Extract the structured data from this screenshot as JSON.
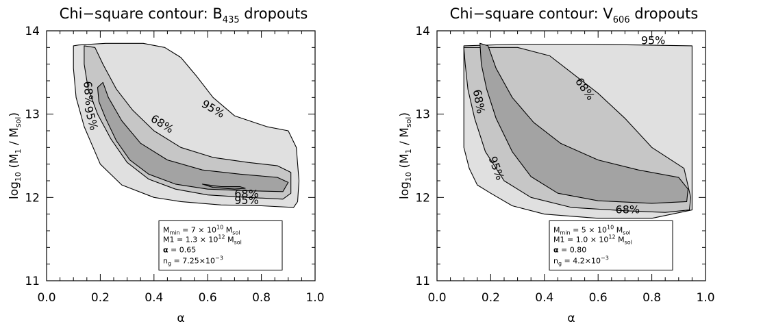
{
  "chart_data": [
    {
      "type": "contour",
      "title": "Chi−square contour: B",
      "title_sub": "435",
      "title_tail": " dropouts",
      "xlabel": "α",
      "ylabel_main": "log",
      "ylabel_sub1": "10",
      "ylabel_mid": " (M",
      "ylabel_sub2": "1",
      "ylabel_mid2": " / M",
      "ylabel_sub3": "sol",
      "ylabel_end": ")",
      "xlim": [
        0.0,
        1.0
      ],
      "ylim": [
        11.0,
        14.0
      ],
      "xticks": [
        "0.0",
        "0.2",
        "0.4",
        "0.6",
        "0.8",
        "1.0"
      ],
      "yticks": [
        "11",
        "12",
        "13",
        "14"
      ],
      "contours": [
        {
          "level": "95%",
          "fill": "#e0e0e0",
          "points": [
            [
              0.1,
              13.82
            ],
            [
              0.12,
              13.83
            ],
            [
              0.22,
              13.85
            ],
            [
              0.36,
              13.85
            ],
            [
              0.44,
              13.8
            ],
            [
              0.5,
              13.68
            ],
            [
              0.56,
              13.45
            ],
            [
              0.62,
              13.2
            ],
            [
              0.7,
              12.98
            ],
            [
              0.82,
              12.85
            ],
            [
              0.9,
              12.8
            ],
            [
              0.93,
              12.6
            ],
            [
              0.94,
              12.2
            ],
            [
              0.935,
              11.95
            ],
            [
              0.92,
              11.88
            ],
            [
              0.8,
              11.9
            ],
            [
              0.65,
              11.91
            ],
            [
              0.5,
              11.95
            ],
            [
              0.4,
              12.0
            ],
            [
              0.28,
              12.15
            ],
            [
              0.2,
              12.4
            ],
            [
              0.14,
              12.85
            ],
            [
              0.11,
              13.2
            ],
            [
              0.1,
              13.55
            ]
          ]
        },
        {
          "level": "68%",
          "fill": "#c6c6c6",
          "points": [
            [
              0.14,
              13.82
            ],
            [
              0.18,
              13.8
            ],
            [
              0.21,
              13.6
            ],
            [
              0.26,
              13.3
            ],
            [
              0.32,
              13.05
            ],
            [
              0.4,
              12.8
            ],
            [
              0.5,
              12.6
            ],
            [
              0.62,
              12.48
            ],
            [
              0.75,
              12.42
            ],
            [
              0.86,
              12.38
            ],
            [
              0.91,
              12.3
            ],
            [
              0.91,
              12.05
            ],
            [
              0.88,
              11.98
            ],
            [
              0.75,
              12.0
            ],
            [
              0.6,
              12.03
            ],
            [
              0.48,
              12.1
            ],
            [
              0.38,
              12.22
            ],
            [
              0.3,
              12.42
            ],
            [
              0.24,
              12.7
            ],
            [
              0.19,
              13.0
            ],
            [
              0.155,
              13.3
            ],
            [
              0.14,
              13.6
            ]
          ]
        },
        {
          "level": "68% core",
          "fill": "#a3a3a3",
          "points": [
            [
              0.19,
              13.32
            ],
            [
              0.21,
              13.38
            ],
            [
              0.23,
              13.2
            ],
            [
              0.28,
              12.92
            ],
            [
              0.35,
              12.65
            ],
            [
              0.45,
              12.45
            ],
            [
              0.58,
              12.33
            ],
            [
              0.72,
              12.28
            ],
            [
              0.86,
              12.24
            ],
            [
              0.9,
              12.18
            ],
            [
              0.88,
              12.07
            ],
            [
              0.75,
              12.08
            ],
            [
              0.6,
              12.1
            ],
            [
              0.48,
              12.16
            ],
            [
              0.38,
              12.28
            ],
            [
              0.31,
              12.45
            ],
            [
              0.26,
              12.68
            ],
            [
              0.22,
              12.95
            ],
            [
              0.195,
              13.15
            ]
          ]
        },
        {
          "level": "inner",
          "fill": "#888888",
          "points": [
            [
              0.58,
              12.16
            ],
            [
              0.65,
              12.13
            ],
            [
              0.72,
              12.13
            ],
            [
              0.74,
              12.11
            ],
            [
              0.7,
              12.1
            ],
            [
              0.62,
              12.12
            ]
          ]
        }
      ],
      "labels": [
        {
          "text": "95%",
          "x": 0.62,
          "y": 13.06,
          "angle": 30
        },
        {
          "text": "68%",
          "x": 0.43,
          "y": 12.88,
          "angle": 32
        },
        {
          "text": "68%",
          "x": 0.155,
          "y": 13.25,
          "angle": 85
        },
        {
          "text": "95%",
          "x": 0.165,
          "y": 12.95,
          "angle": 75
        },
        {
          "text": "68%",
          "x": 0.745,
          "y": 12.04,
          "angle": 0
        },
        {
          "text": "95%",
          "x": 0.745,
          "y": 11.96,
          "angle": 0
        }
      ],
      "info": {
        "mmin_label": "M",
        "mmin_sub": "min",
        "mmin_val": " = 7 × 10",
        "mmin_exp": "10",
        "mmin_unit": " M",
        "mmin_unit_sub": "sol",
        "m1_label": "M1",
        "m1_val": " = 1.3 × 10",
        "m1_exp": "12",
        "m1_unit": " M",
        "m1_unit_sub": "sol",
        "alpha_label": "α",
        "alpha_val": "= 0.65",
        "ng_label": "n",
        "ng_sub": "g",
        "ng_val": "= 7.25×10",
        "ng_exp": "−3"
      }
    },
    {
      "type": "contour",
      "title": "Chi−square contour: V",
      "title_sub": "606",
      "title_tail": " dropouts",
      "xlabel": "α",
      "ylabel_main": "log",
      "ylabel_sub1": "10",
      "ylabel_mid": " (M",
      "ylabel_sub2": "1",
      "ylabel_mid2": " / M",
      "ylabel_sub3": "sol",
      "ylabel_end": ")",
      "xlim": [
        0.0,
        1.0
      ],
      "ylim": [
        11.0,
        14.0
      ],
      "xticks": [
        "0.0",
        "0.2",
        "0.4",
        "0.6",
        "0.8",
        "1.0"
      ],
      "yticks": [
        "11",
        "12",
        "13",
        "14"
      ],
      "contours": [
        {
          "level": "95%",
          "fill": "#e0e0e0",
          "points": [
            [
              0.1,
              13.82
            ],
            [
              0.3,
              13.84
            ],
            [
              0.55,
              13.84
            ],
            [
              0.75,
              13.83
            ],
            [
              0.95,
              13.82
            ],
            [
              0.95,
              11.85
            ],
            [
              0.8,
              11.75
            ],
            [
              0.6,
              11.75
            ],
            [
              0.4,
              11.8
            ],
            [
              0.28,
              11.9
            ],
            [
              0.2,
              12.05
            ],
            [
              0.15,
              12.15
            ],
            [
              0.12,
              12.35
            ],
            [
              0.1,
              12.6
            ]
          ]
        },
        {
          "level": "68%",
          "fill": "#c6c6c6",
          "points": [
            [
              0.1,
              13.8
            ],
            [
              0.3,
              13.8
            ],
            [
              0.42,
              13.7
            ],
            [
              0.5,
              13.5
            ],
            [
              0.6,
              13.25
            ],
            [
              0.7,
              12.95
            ],
            [
              0.8,
              12.6
            ],
            [
              0.92,
              12.35
            ],
            [
              0.945,
              12.0
            ],
            [
              0.94,
              11.85
            ],
            [
              0.85,
              11.82
            ],
            [
              0.7,
              11.84
            ],
            [
              0.5,
              11.88
            ],
            [
              0.35,
              12.0
            ],
            [
              0.25,
              12.2
            ],
            [
              0.18,
              12.55
            ],
            [
              0.14,
              12.95
            ],
            [
              0.115,
              13.3
            ],
            [
              0.105,
              13.6
            ]
          ]
        },
        {
          "level": "68% core",
          "fill": "#a3a3a3",
          "points": [
            [
              0.16,
              13.85
            ],
            [
              0.19,
              13.82
            ],
            [
              0.22,
              13.55
            ],
            [
              0.28,
              13.2
            ],
            [
              0.36,
              12.9
            ],
            [
              0.46,
              12.65
            ],
            [
              0.6,
              12.45
            ],
            [
              0.75,
              12.33
            ],
            [
              0.9,
              12.24
            ],
            [
              0.935,
              12.1
            ],
            [
              0.93,
              11.95
            ],
            [
              0.8,
              11.93
            ],
            [
              0.6,
              11.96
            ],
            [
              0.45,
              12.05
            ],
            [
              0.35,
              12.25
            ],
            [
              0.28,
              12.55
            ],
            [
              0.22,
              12.95
            ],
            [
              0.185,
              13.3
            ],
            [
              0.165,
              13.6
            ]
          ]
        }
      ],
      "labels": [
        {
          "text": "95%",
          "x": 0.805,
          "y": 13.88,
          "angle": 0
        },
        {
          "text": "68%",
          "x": 0.55,
          "y": 13.3,
          "angle": 55
        },
        {
          "text": "68%",
          "x": 0.155,
          "y": 13.15,
          "angle": 80
        },
        {
          "text": "95%",
          "x": 0.22,
          "y": 12.35,
          "angle": 70
        },
        {
          "text": "68%",
          "x": 0.71,
          "y": 11.85,
          "angle": 0
        }
      ],
      "info": {
        "mmin_label": "M",
        "mmin_sub": "min",
        "mmin_val": " = 5 × 10",
        "mmin_exp": "10",
        "mmin_unit": " M",
        "mmin_unit_sub": "sol",
        "m1_label": "M1",
        "m1_val": " = 1.0 × 10",
        "m1_exp": "12",
        "m1_unit": " M",
        "m1_unit_sub": "sol",
        "alpha_label": "α",
        "alpha_val": "= 0.80",
        "ng_label": "n",
        "ng_sub": "g",
        "ng_val": "= 4.2×10",
        "ng_exp": "−3"
      }
    }
  ]
}
